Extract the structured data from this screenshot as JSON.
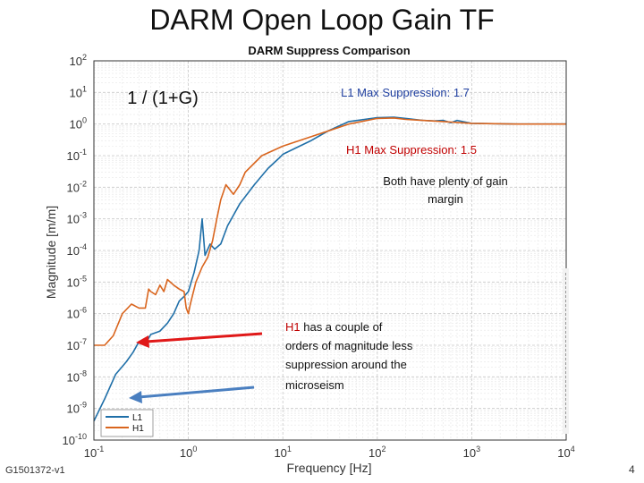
{
  "slide": {
    "title": "DARM Open Loop Gain TF",
    "footer_id": "G1501372-v1",
    "page_number": "4"
  },
  "annotations": {
    "formula": "1 / (1+G)",
    "l1_max": "L1 Max Suppression: 1.7",
    "h1_max": "H1 Max Suppression: 1.5",
    "gain_margin": [
      "Both have plenty of gain",
      "margin"
    ],
    "h1_note_prefix": "H1",
    "h1_note_line1_rest": " has a couple of",
    "h1_note_lines": [
      "orders of magnitude less",
      "suppression around the",
      "microseism"
    ]
  },
  "colors": {
    "l1": "#1f6fa8",
    "h1": "#d9651e",
    "formula_blue": "#1f3fa0",
    "h1_red": "#c00000",
    "arrow_red": "#e01818",
    "arrow_blue": "#4a7fc0"
  },
  "chart_data": {
    "type": "line",
    "title": "DARM Suppress Comparison",
    "xlabel": "Frequency [Hz]",
    "ylabel": "Magnitude [m/m]",
    "xscale": "log",
    "yscale": "log",
    "xlim": [
      0.1,
      10000
    ],
    "ylim": [
      1e-10,
      100
    ],
    "grid": true,
    "legend_position": "bottom-left",
    "x_ticks": [
      {
        "value": 0.1,
        "base": "10",
        "exp": "-1"
      },
      {
        "value": 1,
        "base": "10",
        "exp": "0"
      },
      {
        "value": 10,
        "base": "10",
        "exp": "1"
      },
      {
        "value": 100,
        "base": "10",
        "exp": "2"
      },
      {
        "value": 1000,
        "base": "10",
        "exp": "3"
      },
      {
        "value": 10000,
        "base": "10",
        "exp": "4"
      }
    ],
    "y_ticks": [
      {
        "value": 100,
        "base": "10",
        "exp": "2"
      },
      {
        "value": 10,
        "base": "10",
        "exp": "1"
      },
      {
        "value": 1,
        "base": "10",
        "exp": "0"
      },
      {
        "value": 0.1,
        "base": "10",
        "exp": "-1"
      },
      {
        "value": 0.01,
        "base": "10",
        "exp": "-2"
      },
      {
        "value": 0.001,
        "base": "10",
        "exp": "-3"
      },
      {
        "value": 0.0001,
        "base": "10",
        "exp": "-4"
      },
      {
        "value": 1e-05,
        "base": "10",
        "exp": "-5"
      },
      {
        "value": 1e-06,
        "base": "10",
        "exp": "-6"
      },
      {
        "value": 1e-07,
        "base": "10",
        "exp": "-7"
      },
      {
        "value": 1e-08,
        "base": "10",
        "exp": "-8"
      },
      {
        "value": 1e-09,
        "base": "10",
        "exp": "-9"
      },
      {
        "value": 1e-10,
        "base": "10",
        "exp": "-10"
      }
    ],
    "series": [
      {
        "name": "L1",
        "color": "#1f6fa8",
        "points": [
          [
            0.1,
            4e-10
          ],
          [
            0.13,
            2e-09
          ],
          [
            0.17,
            1.2e-08
          ],
          [
            0.22,
            3e-08
          ],
          [
            0.26,
            6e-08
          ],
          [
            0.3,
            1.3e-07
          ],
          [
            0.35,
            1.1e-07
          ],
          [
            0.4,
            2.2e-07
          ],
          [
            0.5,
            2.8e-07
          ],
          [
            0.6,
            5e-07
          ],
          [
            0.7,
            1e-06
          ],
          [
            0.8,
            2.5e-06
          ],
          [
            0.9,
            3.5e-06
          ],
          [
            1.0,
            5e-06
          ],
          [
            1.15,
            2e-05
          ],
          [
            1.3,
            0.0001
          ],
          [
            1.4,
            0.001
          ],
          [
            1.5,
            7e-05
          ],
          [
            1.7,
            0.00016
          ],
          [
            1.9,
            0.00011
          ],
          [
            2.2,
            0.00016
          ],
          [
            2.6,
            0.0006
          ],
          [
            3.5,
            0.003
          ],
          [
            5,
            0.012
          ],
          [
            7,
            0.04
          ],
          [
            9,
            0.08
          ],
          [
            10,
            0.11
          ],
          [
            14,
            0.18
          ],
          [
            20,
            0.3
          ],
          [
            30,
            0.6
          ],
          [
            50,
            1.2
          ],
          [
            100,
            1.6
          ],
          [
            150,
            1.65
          ],
          [
            200,
            1.5
          ],
          [
            300,
            1.3
          ],
          [
            400,
            1.25
          ],
          [
            500,
            1.3
          ],
          [
            600,
            1.1
          ],
          [
            700,
            1.3
          ],
          [
            1000,
            1.05
          ],
          [
            3000,
            1.0
          ],
          [
            10000,
            1.0
          ]
        ]
      },
      {
        "name": "H1",
        "color": "#d9651e",
        "points": [
          [
            0.1,
            1e-07
          ],
          [
            0.13,
            1e-07
          ],
          [
            0.16,
            2e-07
          ],
          [
            0.2,
            1e-06
          ],
          [
            0.25,
            2e-06
          ],
          [
            0.3,
            1.5e-06
          ],
          [
            0.35,
            1.5e-06
          ],
          [
            0.38,
            6e-06
          ],
          [
            0.4,
            5e-06
          ],
          [
            0.45,
            4e-06
          ],
          [
            0.5,
            8e-06
          ],
          [
            0.55,
            5e-06
          ],
          [
            0.6,
            1.2e-05
          ],
          [
            0.7,
            8e-06
          ],
          [
            0.8,
            6e-06
          ],
          [
            0.9,
            5e-06
          ],
          [
            0.95,
            1.5e-06
          ],
          [
            1.0,
            1e-06
          ],
          [
            1.05,
            2e-06
          ],
          [
            1.2,
            1e-05
          ],
          [
            1.4,
            3e-05
          ],
          [
            1.6,
            6e-05
          ],
          [
            1.8,
            0.0002
          ],
          [
            2.0,
            0.001
          ],
          [
            2.2,
            0.004
          ],
          [
            2.5,
            0.012
          ],
          [
            3.0,
            0.006
          ],
          [
            3.5,
            0.012
          ],
          [
            4,
            0.03
          ],
          [
            6,
            0.1
          ],
          [
            10,
            0.2
          ],
          [
            20,
            0.4
          ],
          [
            50,
            1.0
          ],
          [
            100,
            1.5
          ],
          [
            150,
            1.55
          ],
          [
            200,
            1.4
          ],
          [
            300,
            1.3
          ],
          [
            500,
            1.2
          ],
          [
            1000,
            1.05
          ],
          [
            3000,
            1.0
          ],
          [
            10000,
            1.0
          ]
        ]
      }
    ]
  }
}
